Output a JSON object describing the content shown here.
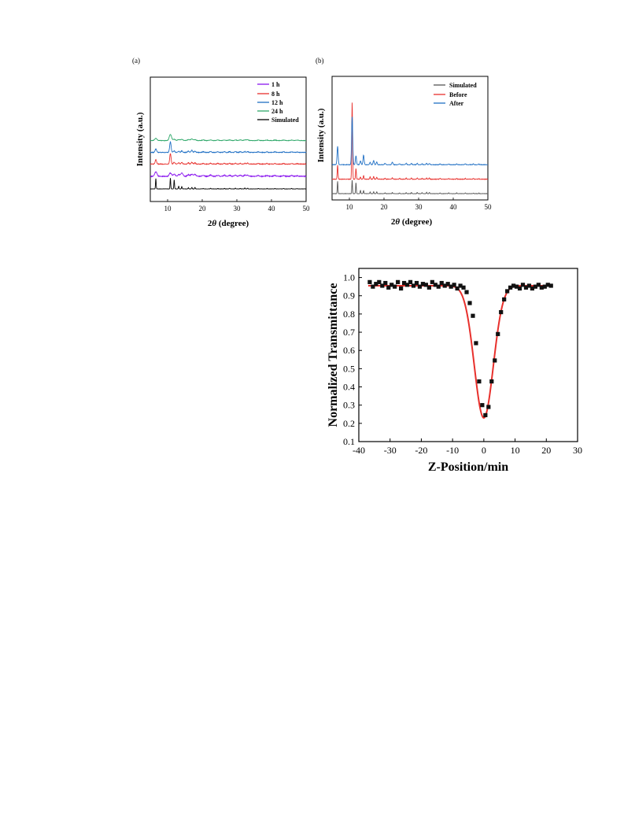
{
  "chart_data": [
    {
      "type": "line",
      "panel_label": "(a)",
      "xlabel_prefix": "2",
      "xlabel_symbol": "θ",
      "xlabel_suffix": " (degree)",
      "ylabel": "Intensity (a.u.)",
      "xlim": [
        5,
        50
      ],
      "xticks": [
        "10",
        "20",
        "30",
        "40",
        "50"
      ],
      "legend_position": "top-right",
      "peaks": [
        6.6,
        10.8,
        11.9,
        13.2,
        14.1,
        16.0,
        17.0,
        17.9,
        20.3,
        22.4,
        24.5,
        26.4,
        27.9,
        29.6,
        31.0,
        32.3,
        33.1,
        36.2,
        38.7,
        41.0,
        43.5,
        45.8,
        47.4
      ],
      "series": [
        {
          "name": "1 h",
          "color": "#8a16ef",
          "offset": 0.82,
          "heights": [
            0.3,
            0.22,
            0.14,
            0.1,
            0.22,
            0.1,
            0.14,
            0.12,
            0.06,
            0.08,
            0.06,
            0.07,
            0.06,
            0.07,
            0.06,
            0.07,
            0.08,
            0.05,
            0.05,
            0.05,
            0.05,
            0.05,
            0.04
          ],
          "width": 0.45,
          "noise": 0.025
        },
        {
          "name": "8 h",
          "color": "#e8302c",
          "offset": 1.62,
          "heights": [
            0.28,
            0.68,
            0.12,
            0.08,
            0.1,
            0.08,
            0.12,
            0.08,
            0.05,
            0.06,
            0.05,
            0.05,
            0.05,
            0.05,
            0.05,
            0.05,
            0.06,
            0.04,
            0.04,
            0.04,
            0.04,
            0.04,
            0.03
          ],
          "width": 0.28,
          "noise": 0.018
        },
        {
          "name": "12 h",
          "color": "#1f6fc4",
          "offset": 2.38,
          "heights": [
            0.22,
            0.68,
            0.1,
            0.07,
            0.1,
            0.08,
            0.14,
            0.08,
            0.05,
            0.06,
            0.05,
            0.05,
            0.05,
            0.05,
            0.05,
            0.05,
            0.06,
            0.04,
            0.04,
            0.04,
            0.04,
            0.04,
            0.03
          ],
          "width": 0.3,
          "noise": 0.018
        },
        {
          "name": "24 h",
          "color": "#2fa86a",
          "offset": 3.15,
          "heights": [
            0.14,
            0.4,
            0.08,
            0.06,
            0.08,
            0.06,
            0.1,
            0.06,
            0.04,
            0.04,
            0.04,
            0.04,
            0.04,
            0.04,
            0.04,
            0.04,
            0.05,
            0.03,
            0.03,
            0.03,
            0.03,
            0.03,
            0.03
          ],
          "width": 0.45,
          "noise": 0.015
        },
        {
          "name": "Simulated",
          "color": "#000000",
          "offset": 0.0,
          "heights": [
            0.68,
            0.72,
            0.6,
            0.18,
            0.16,
            0.08,
            0.1,
            0.1,
            0.03,
            0.05,
            0.03,
            0.04,
            0.05,
            0.05,
            0.04,
            0.06,
            0.05,
            0.03,
            0.03,
            0.03,
            0.03,
            0.03,
            0.02
          ],
          "width": 0.13,
          "noise": 0.008
        }
      ]
    },
    {
      "type": "line",
      "panel_label": "(b)",
      "xlabel_prefix": "2",
      "xlabel_symbol": "θ",
      "xlabel_suffix": " (degree)",
      "ylabel": "Intensity (a.u.)",
      "xlim": [
        5,
        50
      ],
      "xticks": [
        "10",
        "20",
        "30",
        "40",
        "50"
      ],
      "legend_position": "top-right",
      "peaks": [
        6.6,
        10.8,
        11.9,
        13.2,
        14.1,
        16.0,
        17.0,
        17.9,
        20.3,
        22.4,
        24.5,
        26.4,
        27.9,
        29.6,
        31.0,
        32.3,
        33.1,
        36.2,
        38.7,
        41.0,
        43.5,
        45.8,
        47.4
      ],
      "series": [
        {
          "name": "Simulated",
          "color": "#555555",
          "offset": 0.0,
          "heights": [
            0.65,
            0.7,
            0.58,
            0.18,
            0.16,
            0.08,
            0.1,
            0.1,
            0.04,
            0.06,
            0.04,
            0.05,
            0.06,
            0.06,
            0.05,
            0.07,
            0.06,
            0.04,
            0.04,
            0.04,
            0.04,
            0.03,
            0.03
          ],
          "width": 0.13,
          "noise": 0.008
        },
        {
          "name": "Before",
          "color": "#e8302c",
          "offset": 0.75,
          "heights": [
            0.72,
            4.0,
            0.55,
            0.12,
            0.18,
            0.12,
            0.14,
            0.1,
            0.05,
            0.07,
            0.05,
            0.06,
            0.06,
            0.06,
            0.05,
            0.06,
            0.06,
            0.04,
            0.04,
            0.04,
            0.04,
            0.04,
            0.03
          ],
          "width": 0.16,
          "noise": 0.012
        },
        {
          "name": "After",
          "color": "#1f6fc4",
          "offset": 1.5,
          "heights": [
            0.95,
            2.5,
            0.45,
            0.2,
            0.5,
            0.12,
            0.22,
            0.14,
            0.08,
            0.14,
            0.05,
            0.07,
            0.07,
            0.07,
            0.05,
            0.07,
            0.06,
            0.04,
            0.04,
            0.04,
            0.04,
            0.04,
            0.03
          ],
          "width": 0.22,
          "noise": 0.012
        }
      ]
    },
    {
      "type": "scatter",
      "xlabel": "Z-Position/min",
      "ylabel": "Normalized Transmittance",
      "xlim": [
        -40,
        30
      ],
      "ylim": [
        0.1,
        1.05
      ],
      "xticks": [
        "-40",
        "-30",
        "-20",
        "-10",
        "0",
        "10",
        "20",
        "30"
      ],
      "yticks": [
        "0.1",
        "0.2",
        "0.3",
        "0.4",
        "0.5",
        "0.6",
        "0.7",
        "0.8",
        "0.9",
        "1.0"
      ],
      "marker_color": "#111111",
      "fit_color": "#e8302c",
      "fit": {
        "baseline": 0.955,
        "depth": 0.725,
        "center": 0.0,
        "width": 4.3
      },
      "x": [
        -36.5,
        -35.5,
        -34.5,
        -33.5,
        -32.5,
        -31.5,
        -30.5,
        -29.5,
        -28.5,
        -27.5,
        -26.5,
        -25.5,
        -24.5,
        -23.5,
        -22.5,
        -21.5,
        -20.5,
        -19.5,
        -18.5,
        -17.5,
        -16.5,
        -15.5,
        -14.5,
        -13.5,
        -12.5,
        -11.5,
        -10.5,
        -9.5,
        -8.5,
        -7.5,
        -6.5,
        -5.5,
        -4.5,
        -3.5,
        -2.5,
        -1.5,
        -0.5,
        0.5,
        1.5,
        2.5,
        3.5,
        4.5,
        5.5,
        6.5,
        7.5,
        8.5,
        9.5,
        10.5,
        11.5,
        12.5,
        13.5,
        14.5,
        15.5,
        16.5,
        17.5,
        18.5,
        19.5,
        20.5,
        21.5
      ],
      "y": [
        0.975,
        0.95,
        0.965,
        0.975,
        0.955,
        0.97,
        0.945,
        0.96,
        0.95,
        0.975,
        0.94,
        0.97,
        0.96,
        0.975,
        0.955,
        0.97,
        0.95,
        0.965,
        0.96,
        0.945,
        0.975,
        0.96,
        0.95,
        0.97,
        0.955,
        0.965,
        0.95,
        0.96,
        0.94,
        0.955,
        0.945,
        0.92,
        0.86,
        0.79,
        0.64,
        0.43,
        0.3,
        0.245,
        0.29,
        0.43,
        0.545,
        0.69,
        0.81,
        0.88,
        0.925,
        0.945,
        0.955,
        0.95,
        0.94,
        0.96,
        0.945,
        0.955,
        0.94,
        0.95,
        0.96,
        0.945,
        0.95,
        0.96,
        0.955
      ]
    }
  ]
}
